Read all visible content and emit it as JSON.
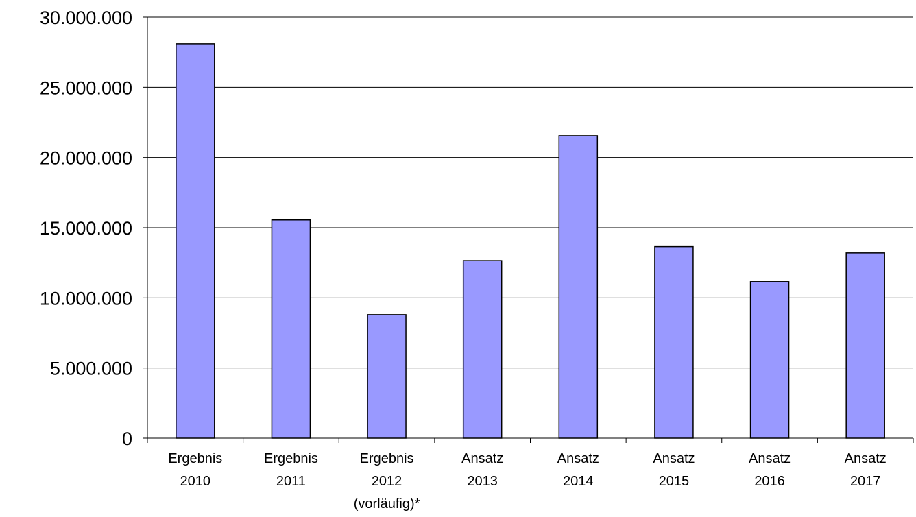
{
  "chart_data": {
    "type": "bar",
    "title": "",
    "xlabel": "",
    "ylabel": "",
    "categories": [
      [
        "Ergebnis",
        "2010"
      ],
      [
        "Ergebnis",
        "2011"
      ],
      [
        "Ergebnis",
        "2012",
        "(vorläufig)*"
      ],
      [
        "Ansatz",
        "2013"
      ],
      [
        "Ansatz",
        "2014"
      ],
      [
        "Ansatz",
        "2015"
      ],
      [
        "Ansatz",
        "2016"
      ],
      [
        "Ansatz",
        "2017"
      ]
    ],
    "values": [
      28100000,
      15550000,
      8800000,
      12650000,
      21550000,
      13650000,
      11150000,
      13200000
    ],
    "ylim": [
      0,
      30000000
    ],
    "yticks": [
      0,
      5000000,
      10000000,
      15000000,
      20000000,
      25000000,
      30000000
    ],
    "ytick_labels": [
      "0",
      "5.000.000",
      "10.000.000",
      "15.000.000",
      "20.000.000",
      "25.000.000",
      "30.000.000"
    ],
    "grid": true,
    "legend": "none",
    "colors": {
      "bar_fill": "#9999ff",
      "bar_stroke": "#000000",
      "grid": "#000000"
    }
  }
}
